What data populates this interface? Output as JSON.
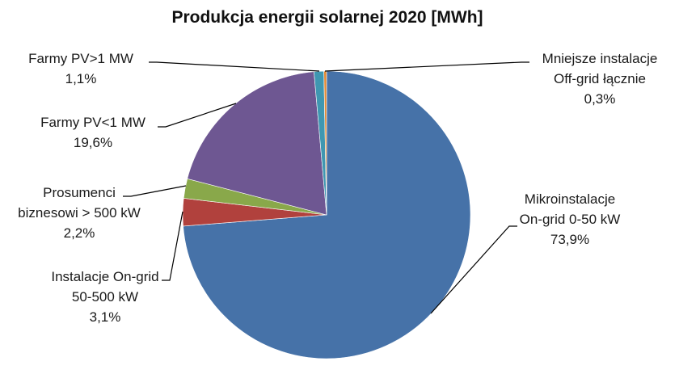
{
  "chart_data": {
    "type": "pie",
    "title": "Produkcja energii solarnej 2020 [MWh]",
    "slices": [
      {
        "name_lines": [
          "Mikroinstalacje",
          "On-grid 0-50 kW"
        ],
        "value": 73.9,
        "label": "73,9%",
        "color": "#4672a8"
      },
      {
        "name_lines": [
          "Instalacje On-grid",
          "50-500 kW"
        ],
        "value": 3.1,
        "label": "3,1%",
        "color": "#b1413d"
      },
      {
        "name_lines": [
          "Prosumenci",
          "biznesowi > 500 kW"
        ],
        "value": 2.2,
        "label": "2,2%",
        "color": "#89a84a"
      },
      {
        "name_lines": [
          "Farmy PV<1 MW"
        ],
        "value": 19.6,
        "label": "19,6%",
        "color": "#6e5792"
      },
      {
        "name_lines": [
          "Farmy PV>1 MW"
        ],
        "value": 1.1,
        "label": "1,1%",
        "color": "#3f97b1"
      },
      {
        "name_lines": [
          "Mniejsze instalacje",
          "Off-grid łącznie"
        ],
        "value": 0.3,
        "label": "0,3%",
        "color": "#e38a32"
      }
    ],
    "start_angle": "12 o'clock",
    "direction": "clockwise",
    "legend": "none"
  }
}
